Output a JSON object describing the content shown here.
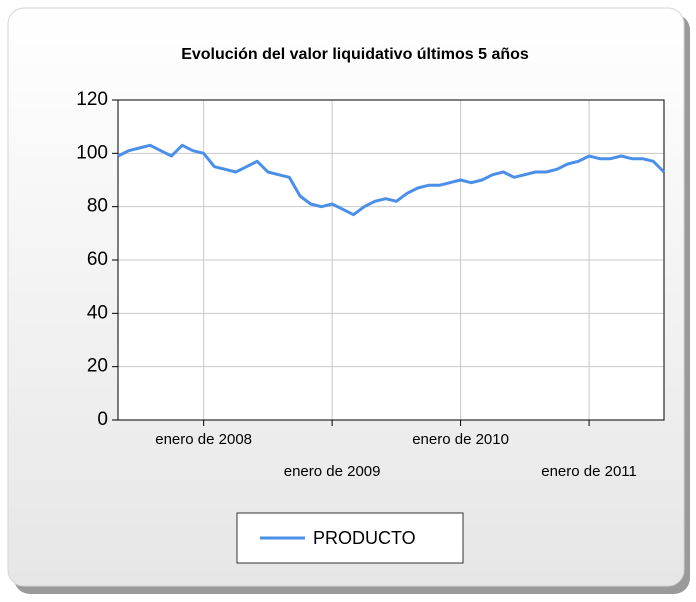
{
  "chart_data": {
    "type": "line",
    "title": "Evolución del valor liquidativo últimos 5 años",
    "x": [
      "2007-05",
      "2007-06",
      "2007-07",
      "2007-08",
      "2007-09",
      "2007-10",
      "2007-11",
      "2007-12",
      "2008-01",
      "2008-02",
      "2008-03",
      "2008-04",
      "2008-05",
      "2008-06",
      "2008-07",
      "2008-08",
      "2008-09",
      "2008-10",
      "2008-11",
      "2008-12",
      "2009-01",
      "2009-02",
      "2009-03",
      "2009-04",
      "2009-05",
      "2009-06",
      "2009-07",
      "2009-08",
      "2009-09",
      "2009-10",
      "2009-11",
      "2009-12",
      "2010-01",
      "2010-02",
      "2010-03",
      "2010-04",
      "2010-05",
      "2010-06",
      "2010-07",
      "2010-08",
      "2010-09",
      "2010-10",
      "2010-11",
      "2010-12",
      "2011-01",
      "2011-02",
      "2011-03",
      "2011-04",
      "2011-05",
      "2011-06",
      "2011-07",
      "2011-08"
    ],
    "series": [
      {
        "name": "PRODUCTO",
        "color": "#4a8fe8",
        "values": [
          99,
          101,
          102,
          103,
          101,
          99,
          103,
          101,
          100,
          95,
          94,
          93,
          95,
          97,
          93,
          92,
          91,
          84,
          81,
          80,
          81,
          79,
          77,
          80,
          82,
          83,
          82,
          85,
          87,
          88,
          88,
          89,
          90,
          89,
          90,
          92,
          93,
          91,
          92,
          93,
          93,
          94,
          96,
          97,
          99,
          98,
          98,
          99,
          98,
          98,
          97,
          93
        ]
      }
    ],
    "xlim": [
      "2007-05",
      "2011-08"
    ],
    "xticks": [
      {
        "value": "2008-01",
        "label": "enero de 2008"
      },
      {
        "value": "2009-01",
        "label": "enero de 2009"
      },
      {
        "value": "2010-01",
        "label": "enero de 2010"
      },
      {
        "value": "2011-01",
        "label": "enero de 2011"
      }
    ],
    "ylim": [
      0,
      120
    ],
    "yticks": [
      0,
      20,
      40,
      60,
      80,
      100,
      120
    ],
    "grid": true,
    "legend": "bottom"
  }
}
